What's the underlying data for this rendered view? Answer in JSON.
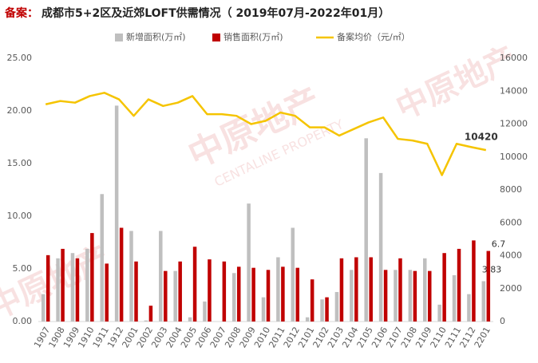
{
  "chart_data": {
    "type": "bar-line",
    "title": [
      "备案：",
      "成都市5+2区及近郊LOFT供需情况（ 2019年07月-2022年01月）"
    ],
    "watermark": [
      "中原地产",
      "CENTALINE PROPERTY"
    ],
    "categories": [
      "1907",
      "1908",
      "1909",
      "1910",
      "1911",
      "1912",
      "2001",
      "2002",
      "2003",
      "2004",
      "2005",
      "2006",
      "2007",
      "2008",
      "2009",
      "2010",
      "2011",
      "2012",
      "2101",
      "2102",
      "2103",
      "2104",
      "2105",
      "2106",
      "2107",
      "2108",
      "2109",
      "2110",
      "2111",
      "2112",
      "2201"
    ],
    "series": [
      {
        "name": "新增面积(万㎡)",
        "type": "bar",
        "color": "#bfbfbf",
        "values": [
          2.6,
          6.0,
          6.5,
          6.9,
          12.1,
          20.5,
          8.6,
          0.1,
          8.6,
          4.8,
          0.4,
          1.9,
          0,
          4.6,
          11.2,
          2.3,
          6.1,
          8.9,
          0.4,
          2.1,
          2.8,
          4.9,
          17.4,
          14.1,
          4.9,
          4.9,
          6.0,
          1.6,
          4.4,
          2.6,
          3.83
        ],
        "value_labels": [
          null,
          null,
          null,
          null,
          null,
          null,
          null,
          null,
          null,
          null,
          null,
          null,
          null,
          null,
          null,
          null,
          null,
          null,
          null,
          null,
          null,
          null,
          null,
          null,
          null,
          null,
          null,
          null,
          null,
          null,
          "3.83"
        ]
      },
      {
        "name": "销售面积(万㎡)",
        "type": "bar",
        "color": "#c00000",
        "values": [
          6.3,
          6.9,
          6.0,
          8.4,
          5.5,
          8.9,
          5.7,
          1.5,
          4.8,
          5.7,
          7.1,
          5.9,
          5.7,
          5.2,
          5.1,
          4.9,
          5.2,
          5.1,
          4.0,
          2.3,
          6.0,
          6.1,
          6.1,
          4.9,
          6.0,
          4.8,
          4.8,
          6.5,
          6.9,
          7.7,
          6.7
        ],
        "value_labels": [
          null,
          null,
          null,
          null,
          null,
          null,
          null,
          null,
          null,
          null,
          null,
          null,
          null,
          null,
          null,
          null,
          null,
          null,
          null,
          null,
          null,
          null,
          null,
          null,
          null,
          null,
          null,
          null,
          null,
          null,
          "6.7"
        ]
      },
      {
        "name": "备案均价（元/㎡）",
        "type": "line",
        "axis": "y2",
        "color": "#f5c400",
        "values": [
          13200,
          13400,
          13300,
          13700,
          13900,
          13500,
          12500,
          13500,
          13100,
          13300,
          13700,
          12600,
          12600,
          12500,
          12000,
          12200,
          12700,
          12500,
          11800,
          11800,
          11300,
          11700,
          12100,
          12400,
          11100,
          11000,
          10800,
          8900,
          10800,
          10600,
          10420
        ],
        "value_labels": [
          null,
          null,
          null,
          null,
          null,
          null,
          null,
          null,
          null,
          null,
          null,
          null,
          null,
          null,
          null,
          null,
          null,
          null,
          null,
          null,
          null,
          null,
          null,
          null,
          null,
          null,
          null,
          null,
          null,
          null,
          "10420"
        ]
      }
    ],
    "ylim": [
      0,
      25
    ],
    "yticks": [
      {
        "value": 0,
        "label": "0.00"
      },
      {
        "value": 5,
        "label": "5.00"
      },
      {
        "value": 10,
        "label": "10.00"
      },
      {
        "value": 15,
        "label": "15.00"
      },
      {
        "value": 20,
        "label": "20.00"
      },
      {
        "value": 25,
        "label": "25.00"
      }
    ],
    "y2lim": [
      0,
      16000
    ],
    "y2ticks": [
      0,
      2000,
      4000,
      6000,
      8000,
      10000,
      12000,
      14000,
      16000
    ],
    "legend": "top"
  }
}
